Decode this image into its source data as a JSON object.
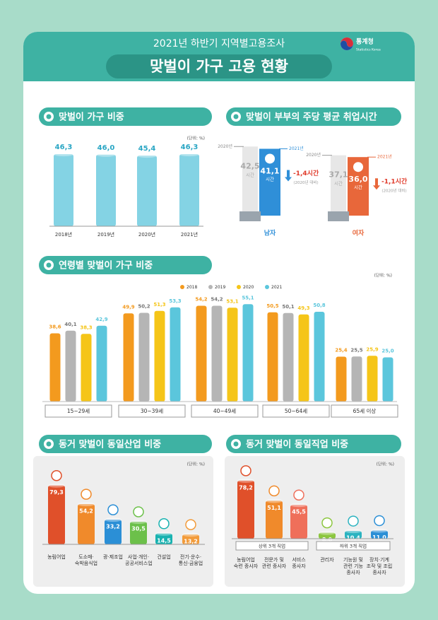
{
  "header": {
    "subtitle": "2021년 하반기 지역별고용조사",
    "title": "맞벌이 가구 고용 현황",
    "logo": "통계청",
    "logo_en": "Statistics Korea"
  },
  "chart_data": [
    {
      "type": "bar",
      "title": "맞벌이 가구 비중",
      "unit": "(단위: %)",
      "categories": [
        "2018년",
        "2019년",
        "2020년",
        "2021년"
      ],
      "values": [
        46.3,
        46.0,
        45.4,
        46.3
      ],
      "value_labels": [
        "46,3",
        "46,0",
        "45,4",
        "46,3"
      ],
      "color": "#84d3e4"
    },
    {
      "type": "paired_bar",
      "title": "맞벌이 부부의 주당 평균 취업시간",
      "categories": [
        "남자",
        "여자"
      ],
      "unit_label": "시간",
      "series": [
        {
          "name": "2020년",
          "color": "#c9c9c9",
          "values": [
            42.5,
            37.1
          ],
          "value_labels": [
            "42,5",
            "37,1"
          ]
        },
        {
          "name": "2021년",
          "colors": [
            "#2f8fd8",
            "#e8673a"
          ],
          "values": [
            41.1,
            36.0
          ],
          "value_labels": [
            "41,1",
            "36,0"
          ]
        }
      ],
      "change": {
        "values": [
          -1.4,
          -1.1
        ],
        "value_labels": [
          "-1,4시간",
          "-1,1시간"
        ],
        "note": "(2020년 대비)",
        "color": "#e03a2a"
      }
    },
    {
      "type": "grouped_bar",
      "title": "연령별 맞벌이 가구 비중",
      "unit": "(단위: %)",
      "categories": [
        "15~29세",
        "30~39세",
        "40~49세",
        "50~64세",
        "65세 이상"
      ],
      "series": [
        {
          "name": "2018",
          "color": "#f39a1e",
          "values": [
            38.6,
            49.9,
            54.2,
            50.5,
            25.4
          ],
          "value_labels": [
            "38,6",
            "49,9",
            "54,2",
            "50,5",
            "25,4"
          ]
        },
        {
          "name": "2019",
          "color": "#b5b5b5",
          "values": [
            40.1,
            50.2,
            54.2,
            50.1,
            25.5
          ],
          "value_labels": [
            "40,1",
            "50,2",
            "54,2",
            "50,1",
            "25,5"
          ]
        },
        {
          "name": "2020",
          "color": "#f5c518",
          "values": [
            38.3,
            51.3,
            53.1,
            49.3,
            25.9
          ],
          "value_labels": [
            "38,3",
            "51,3",
            "53,1",
            "49,3",
            "25,9"
          ]
        },
        {
          "name": "2021",
          "color": "#5bc6dc",
          "values": [
            42.9,
            53.3,
            55.1,
            50.8,
            25.0
          ],
          "value_labels": [
            "42,9",
            "53,3",
            "55,1",
            "50,8",
            "25,0"
          ]
        }
      ]
    },
    {
      "type": "bar",
      "title": "동거 맞벌이 동일산업 비중",
      "unit": "(단위: %)",
      "categories": [
        "농림어업",
        "도소매·숙박음식업",
        "광·제조업",
        "사업·개인·공공서비스업",
        "건설업",
        "전기·운수·통신·금융업"
      ],
      "values": [
        79.3,
        54.2,
        33.2,
        30.5,
        14.5,
        13.2
      ],
      "value_labels": [
        "79,3",
        "54,2",
        "33,2",
        "30,5",
        "14,5",
        "13,2"
      ],
      "colors": [
        "#e0502a",
        "#f08a2b",
        "#2b8fd6",
        "#6cc04a",
        "#18b2b0",
        "#f29b3a"
      ]
    },
    {
      "type": "bar",
      "title": "동거 맞벌이 동일직업 비중",
      "unit": "(단위: %)",
      "categories": [
        "농림어업 숙련 종사자",
        "전문가 및 관련 종사자",
        "서비스 종사자",
        "관리자",
        "기능원 및 관련 기능 종사자",
        "장치·기계 조작 및 조립 종사자"
      ],
      "values": [
        78.2,
        51.1,
        45.5,
        8.0,
        10.4,
        11.0
      ],
      "value_labels": [
        "78,2",
        "51,1",
        "45,5",
        "8,0",
        "10,4",
        "11,0"
      ],
      "colors": [
        "#e0502a",
        "#f08a2b",
        "#ef6f5a",
        "#8cc63f",
        "#2bb3c0",
        "#2b8fd6"
      ],
      "groups": [
        "상위 3개 직업",
        "하위 3개 직업"
      ]
    }
  ]
}
